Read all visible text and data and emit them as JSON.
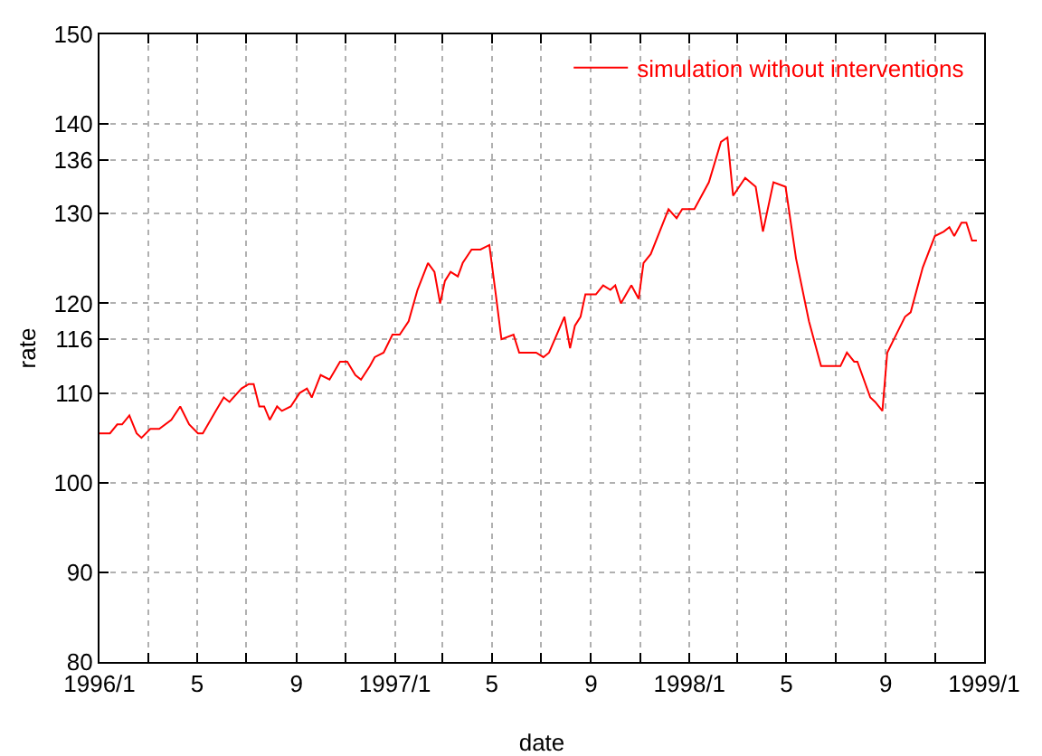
{
  "chart_data": {
    "type": "line",
    "xlabel": "date",
    "ylabel": "rate",
    "x": [
      "1996-01-01",
      "1996-01-14",
      "1996-01-23",
      "1996-01-29",
      "1996-02-07",
      "1996-02-16",
      "1996-02-22",
      "1996-03-04",
      "1996-03-15",
      "1996-03-30",
      "1996-04-10",
      "1996-04-21",
      "1996-05-02",
      "1996-05-08",
      "1996-05-24",
      "1996-06-03",
      "1996-06-10",
      "1996-06-25",
      "1996-07-04",
      "1996-07-10",
      "1996-07-17",
      "1996-07-23",
      "1996-07-30",
      "1996-08-08",
      "1996-08-14",
      "1996-08-25",
      "1996-09-05",
      "1996-09-14",
      "1996-09-20",
      "1996-10-01",
      "1996-10-12",
      "1996-10-25",
      "1996-11-03",
      "1996-11-13",
      "1996-11-20",
      "1996-12-01",
      "1996-12-07",
      "1996-12-18",
      "1996-12-29",
      "1997-01-07",
      "1997-01-18",
      "1997-01-29",
      "1997-02-11",
      "1997-02-19",
      "1997-02-26",
      "1997-03-04",
      "1997-03-11",
      "1997-03-20",
      "1997-03-26",
      "1997-04-06",
      "1997-04-17",
      "1997-04-28",
      "1997-05-06",
      "1997-05-13",
      "1997-05-28",
      "1997-06-04",
      "1997-06-15",
      "1997-06-25",
      "1997-07-04",
      "1997-07-11",
      "1997-07-30",
      "1997-08-06",
      "1997-08-12",
      "1997-08-19",
      "1997-08-25",
      "1997-09-07",
      "1997-09-16",
      "1997-09-25",
      "1997-10-01",
      "1997-10-08",
      "1997-10-21",
      "1997-10-30",
      "1997-11-05",
      "1997-11-14",
      "1997-11-25",
      "1997-12-06",
      "1997-12-16",
      "1997-12-23",
      "1998-01-07",
      "1998-01-25",
      "1998-02-09",
      "1998-02-17",
      "1998-02-24",
      "1998-03-11",
      "1998-03-24",
      "1998-04-02",
      "1998-04-15",
      "1998-04-30",
      "1998-05-13",
      "1998-05-29",
      "1998-06-13",
      "1998-07-07",
      "1998-07-15",
      "1998-07-24",
      "1998-07-28",
      "1998-08-13",
      "1998-08-19",
      "1998-08-28",
      "1998-09-03",
      "1998-09-14",
      "1998-09-25",
      "1998-10-02",
      "1998-10-17",
      "1998-11-01",
      "1998-11-12",
      "1998-11-19",
      "1998-11-25",
      "1998-12-04",
      "1998-12-10",
      "1998-12-17",
      "1998-12-23"
    ],
    "series": [
      {
        "name": "simulation without interventions",
        "color": "#ff0000",
        "values": [
          105.5,
          105.5,
          106.5,
          106.5,
          107.5,
          105.5,
          105,
          106,
          106,
          107,
          108.5,
          106.5,
          105.5,
          105.5,
          108,
          109.5,
          109,
          110.5,
          111,
          111,
          108.5,
          108.5,
          107,
          108.5,
          108,
          108.5,
          110,
          110.5,
          109.5,
          112,
          111.5,
          113.5,
          113.5,
          112,
          111.5,
          113,
          114,
          114.5,
          116.5,
          116.5,
          118,
          121.5,
          124.5,
          123.5,
          120,
          122.5,
          123.5,
          123,
          124.5,
          126,
          126,
          126.5,
          121,
          116,
          116.5,
          114.5,
          114.5,
          114.5,
          114,
          114.5,
          118.5,
          115,
          117.5,
          118.5,
          121,
          121,
          122,
          121.5,
          122,
          120,
          122,
          120.5,
          124.5,
          125.5,
          128,
          130.5,
          129.5,
          130.5,
          130.5,
          133.5,
          138,
          138.5,
          132,
          134,
          133,
          128,
          133.5,
          133,
          125,
          118,
          113,
          113,
          114.5,
          113.5,
          113.5,
          109.5,
          109,
          108,
          114.5,
          116.5,
          118.5,
          119,
          124,
          127.5,
          128,
          128.5,
          127.5,
          129,
          129,
          127,
          127
        ]
      }
    ],
    "xlim": [
      "1996-01-01",
      "1999-01-01"
    ],
    "xticks": [
      {
        "value": "1996-01-01",
        "label": "1996/1"
      },
      {
        "value": "1996-03-01",
        "label": null
      },
      {
        "value": "1996-05-01",
        "label": "5"
      },
      {
        "value": "1996-07-01",
        "label": null
      },
      {
        "value": "1996-09-01",
        "label": "9"
      },
      {
        "value": "1996-11-01",
        "label": null
      },
      {
        "value": "1997-01-01",
        "label": "1997/1"
      },
      {
        "value": "1997-03-01",
        "label": null
      },
      {
        "value": "1997-05-01",
        "label": "5"
      },
      {
        "value": "1997-07-01",
        "label": null
      },
      {
        "value": "1997-09-01",
        "label": "9"
      },
      {
        "value": "1997-11-01",
        "label": null
      },
      {
        "value": "1998-01-01",
        "label": "1998/1"
      },
      {
        "value": "1998-03-01",
        "label": null
      },
      {
        "value": "1998-05-01",
        "label": "5"
      },
      {
        "value": "1998-07-01",
        "label": null
      },
      {
        "value": "1998-09-01",
        "label": "9"
      },
      {
        "value": "1998-11-01",
        "label": null
      },
      {
        "value": "1999-01-01",
        "label": "1999/1"
      }
    ],
    "ylim": [
      80,
      150
    ],
    "yticks": [
      80,
      90,
      100,
      110,
      116,
      120,
      130,
      136,
      140,
      150
    ],
    "grid": true,
    "legend": "top right"
  }
}
